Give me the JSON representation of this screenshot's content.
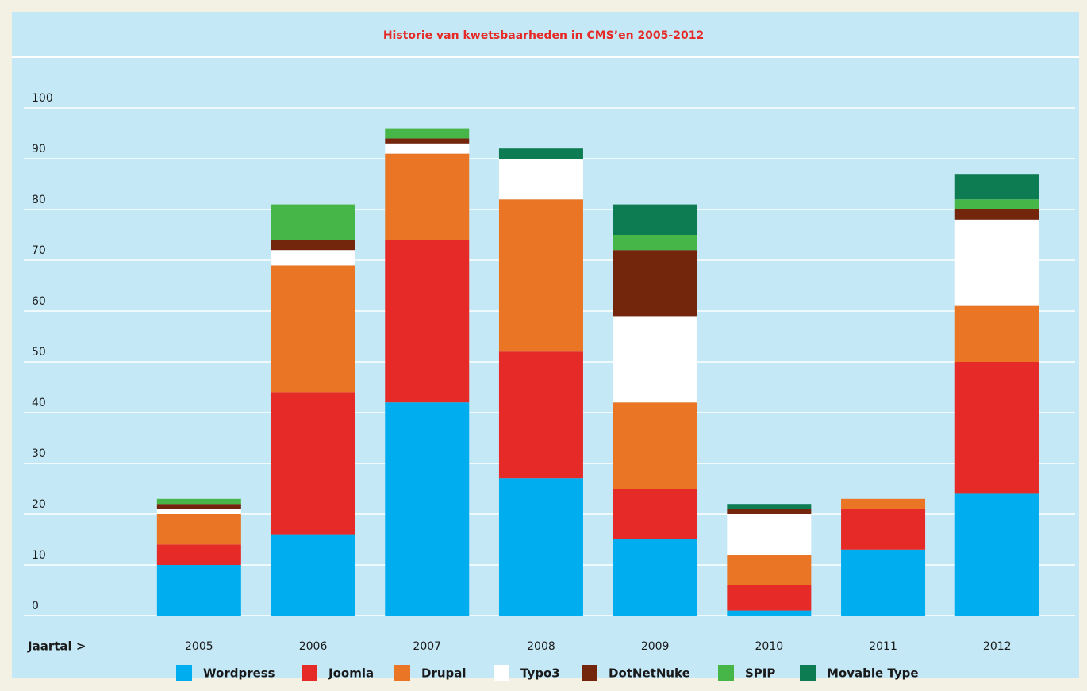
{
  "chart_data": {
    "type": "stacked_bar",
    "title": "Historie van kwetsbaarheden in CMS’en 2005-2012",
    "x_label": "Jaartal >",
    "categories": [
      "2005",
      "2006",
      "2007",
      "2008",
      "2009",
      "2010",
      "2011",
      "2012"
    ],
    "ylim": [
      0,
      100
    ],
    "yticks": [
      0,
      10,
      20,
      30,
      40,
      50,
      60,
      70,
      80,
      90,
      100
    ],
    "grid": true,
    "series": [
      {
        "name": "Wordpress",
        "color": "#00aeef",
        "values": [
          10,
          16,
          42,
          27,
          15,
          1,
          13,
          24
        ]
      },
      {
        "name": "Joomla",
        "color": "#e52a27",
        "values": [
          4,
          28,
          32,
          25,
          10,
          5,
          8,
          26
        ]
      },
      {
        "name": "Drupal",
        "color": "#ea7524",
        "values": [
          6,
          25,
          17,
          30,
          17,
          6,
          2,
          11
        ]
      },
      {
        "name": "Typo3",
        "color": "#ffffff",
        "values": [
          1,
          3,
          2,
          8,
          17,
          8,
          0,
          17
        ]
      },
      {
        "name": "DotNetNuke",
        "color": "#73260c",
        "values": [
          1,
          2,
          1,
          0,
          13,
          1,
          0,
          2
        ]
      },
      {
        "name": "SPIP",
        "color": "#46b649",
        "values": [
          1,
          7,
          2,
          0,
          3,
          0,
          0,
          2
        ]
      },
      {
        "name": "Movable Type",
        "color": "#0d7c53",
        "values": [
          0,
          0,
          0,
          2,
          6,
          1,
          0,
          5
        ]
      }
    ]
  }
}
